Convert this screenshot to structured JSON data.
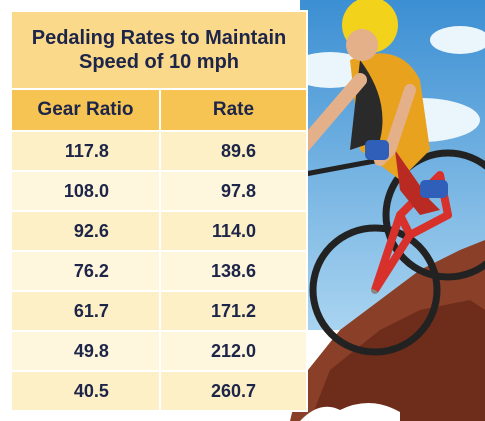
{
  "table": {
    "title": "Pedaling Rates to Maintain Speed of 10 mph",
    "headers": [
      "Gear Ratio",
      "Rate"
    ],
    "rows": [
      [
        "117.8",
        "89.6"
      ],
      [
        "108.0",
        "97.8"
      ],
      [
        "92.6",
        "114.0"
      ],
      [
        "76.2",
        "138.6"
      ],
      [
        "61.7",
        "171.2"
      ],
      [
        "49.8",
        "212.0"
      ],
      [
        "40.5",
        "260.7"
      ]
    ]
  }
}
